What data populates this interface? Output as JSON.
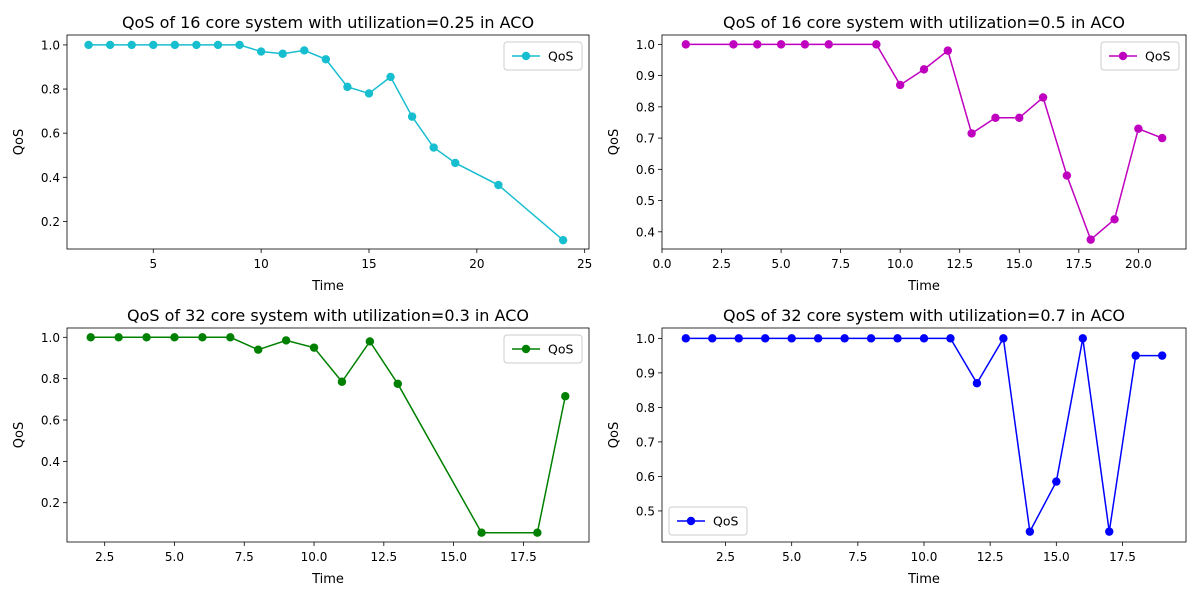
{
  "chart_data": [
    {
      "type": "line",
      "title": "QoS of 16 core system with utilization=0.25 in ACO",
      "xlabel": "Time",
      "ylabel": "QoS",
      "xlim": [
        1,
        25.2
      ],
      "ylim": [
        0.075,
        1.045
      ],
      "xticks": [
        5,
        10,
        15,
        20,
        25
      ],
      "xtick_labels": [
        "5",
        "10",
        "15",
        "20",
        "25"
      ],
      "yticks": [
        0.2,
        0.4,
        0.6,
        0.8,
        1.0
      ],
      "ytick_labels": [
        "0.2",
        "0.4",
        "0.6",
        "0.8",
        "1.0"
      ],
      "legend_position": "upper-right",
      "grid": false,
      "series": [
        {
          "name": "QoS",
          "color": "#17becf",
          "x": [
            2,
            3,
            4,
            5,
            6,
            7,
            8,
            9,
            10,
            11,
            12,
            13,
            14,
            15,
            16,
            17,
            18,
            19,
            21,
            24
          ],
          "y": [
            1.0,
            1.0,
            1.0,
            1.0,
            1.0,
            1.0,
            1.0,
            1.0,
            0.97,
            0.96,
            0.975,
            0.935,
            0.81,
            0.78,
            0.855,
            0.675,
            0.535,
            0.465,
            0.365,
            0.115
          ]
        }
      ]
    },
    {
      "type": "line",
      "title": "QoS of 16 core system with utilization=0.5 in ACO",
      "xlabel": "Time",
      "ylabel": "QoS",
      "xlim": [
        0,
        22.0
      ],
      "ylim": [
        0.345,
        1.03
      ],
      "xticks": [
        0,
        2.5,
        5,
        7.5,
        10,
        12.5,
        15,
        17.5,
        20
      ],
      "xtick_labels": [
        "0.0",
        "2.5",
        "5.0",
        "7.5",
        "10.0",
        "12.5",
        "15.0",
        "17.5",
        "20.0"
      ],
      "yticks": [
        0.4,
        0.5,
        0.6,
        0.7,
        0.8,
        0.9,
        1.0
      ],
      "ytick_labels": [
        "0.4",
        "0.5",
        "0.6",
        "0.7",
        "0.8",
        "0.9",
        "1.0"
      ],
      "legend_position": "upper-right",
      "grid": false,
      "series": [
        {
          "name": "QoS",
          "color": "#bf00bf",
          "x": [
            1,
            3,
            4,
            5,
            6,
            7,
            9,
            10,
            11,
            12,
            13,
            14,
            15,
            16,
            17,
            18,
            19,
            20,
            21
          ],
          "y": [
            1.0,
            1.0,
            1.0,
            1.0,
            1.0,
            1.0,
            1.0,
            0.87,
            0.92,
            0.98,
            0.715,
            0.765,
            0.765,
            0.83,
            0.58,
            0.375,
            0.44,
            0.73,
            0.7
          ]
        }
      ]
    },
    {
      "type": "line",
      "title": "QoS of 32 core system with utilization=0.3 in ACO",
      "xlabel": "Time",
      "ylabel": "QoS",
      "xlim": [
        1.15,
        19.85
      ],
      "ylim": [
        0.01,
        1.045
      ],
      "xticks": [
        2.5,
        5,
        7.5,
        10,
        12.5,
        15,
        17.5
      ],
      "xtick_labels": [
        "2.5",
        "5.0",
        "7.5",
        "10.0",
        "12.5",
        "15.0",
        "17.5"
      ],
      "yticks": [
        0.2,
        0.4,
        0.6,
        0.8,
        1.0
      ],
      "ytick_labels": [
        "0.2",
        "0.4",
        "0.6",
        "0.8",
        "1.0"
      ],
      "legend_position": "upper-right",
      "grid": false,
      "series": [
        {
          "name": "QoS",
          "color": "#008000",
          "x": [
            2,
            3,
            4,
            5,
            6,
            7,
            8,
            9,
            10,
            11,
            12,
            13,
            16,
            18,
            19
          ],
          "y": [
            1.0,
            1.0,
            1.0,
            1.0,
            1.0,
            1.0,
            0.94,
            0.985,
            0.95,
            0.785,
            0.98,
            0.775,
            0.055,
            0.055,
            0.715
          ]
        }
      ]
    },
    {
      "type": "line",
      "title": "QoS of 32 core system with utilization=0.7 in ACO",
      "xlabel": "Time",
      "ylabel": "QoS",
      "xlim": [
        0.1,
        19.9
      ],
      "ylim": [
        0.41,
        1.03
      ],
      "xticks": [
        2.5,
        5,
        7.5,
        10,
        12.5,
        15,
        17.5
      ],
      "xtick_labels": [
        "2.5",
        "5.0",
        "7.5",
        "10.0",
        "12.5",
        "15.0",
        "17.5"
      ],
      "yticks": [
        0.5,
        0.6,
        0.7,
        0.8,
        0.9,
        1.0
      ],
      "ytick_labels": [
        "0.5",
        "0.6",
        "0.7",
        "0.8",
        "0.9",
        "1.0"
      ],
      "legend_position": "lower-left",
      "grid": false,
      "series": [
        {
          "name": "QoS",
          "color": "#0000ff",
          "x": [
            1,
            2,
            3,
            4,
            5,
            6,
            7,
            8,
            9,
            10,
            11,
            12,
            13,
            14,
            15,
            16,
            17,
            18,
            19
          ],
          "y": [
            1.0,
            1.0,
            1.0,
            1.0,
            1.0,
            1.0,
            1.0,
            1.0,
            1.0,
            1.0,
            1.0,
            0.87,
            1.0,
            0.44,
            0.585,
            1.0,
            0.44,
            0.95,
            0.95
          ]
        }
      ]
    }
  ]
}
